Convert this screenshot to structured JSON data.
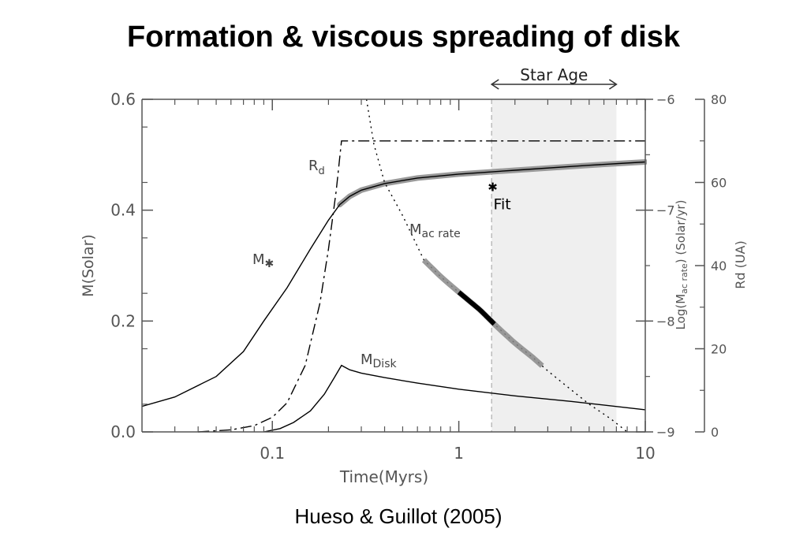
{
  "slide": {
    "title": "Formation & viscous spreading of disk",
    "citation": "Hueso & Guillot (2005)"
  },
  "chart_data": {
    "type": "line",
    "xscale": "log",
    "xlim": [
      0.02,
      10
    ],
    "xlabel": "Time(Myrs)",
    "x_ticks": [
      {
        "value": 0.1,
        "label": "0.1"
      },
      {
        "value": 1,
        "label": "1"
      },
      {
        "value": 10,
        "label": "10"
      }
    ],
    "axes": {
      "left": {
        "label": "M(Solar)",
        "lim": [
          0,
          0.6
        ],
        "ticks": [
          {
            "value": 0,
            "label": "0.0"
          },
          {
            "value": 0.2,
            "label": "0.2"
          },
          {
            "value": 0.4,
            "label": "0.4"
          },
          {
            "value": 0.6,
            "label": "0.6"
          }
        ]
      },
      "accretion": {
        "label_main": "Log(M",
        "label_sub": "ac rate",
        "label_end": ") (Solar/yr)",
        "lim": [
          -9,
          -6
        ],
        "ticks": [
          {
            "value": -6,
            "label": "−6"
          },
          {
            "value": -7,
            "label": "−7"
          },
          {
            "value": -8,
            "label": "−8"
          },
          {
            "value": -9,
            "label": "−9"
          }
        ]
      },
      "radius": {
        "label": "Rd (UA)",
        "lim": [
          0,
          80
        ],
        "ticks": [
          {
            "value": 0,
            "label": "0"
          },
          {
            "value": 20,
            "label": "20"
          },
          {
            "value": 40,
            "label": "40"
          },
          {
            "value": 60,
            "label": "60"
          },
          {
            "value": 80,
            "label": "80"
          }
        ]
      }
    },
    "star_age": {
      "label": "Star Age",
      "range": [
        1.5,
        7.0
      ]
    },
    "fit": {
      "label": "Fit",
      "symbol": "✱",
      "x": 1.52,
      "mass": 0.443
    },
    "series": [
      {
        "id": "mstar",
        "label_main": "M",
        "label_sub": "✱",
        "axis": "left",
        "style": "solid",
        "x": [
          0.02,
          0.03,
          0.05,
          0.07,
          0.09,
          0.12,
          0.16,
          0.2,
          0.23,
          0.26,
          0.3,
          0.4,
          0.6,
          1,
          2,
          5,
          10
        ],
        "y": [
          0.046,
          0.063,
          0.1,
          0.145,
          0.2,
          0.26,
          0.33,
          0.382,
          0.41,
          0.425,
          0.436,
          0.448,
          0.458,
          0.465,
          0.472,
          0.481,
          0.487
        ]
      },
      {
        "id": "mdisk",
        "label_main": "M",
        "label_sub": "Disk",
        "axis": "left",
        "style": "solid",
        "x": [
          0.09,
          0.11,
          0.13,
          0.16,
          0.19,
          0.215,
          0.235,
          0.26,
          0.3,
          0.4,
          0.6,
          1,
          2,
          4,
          10
        ],
        "y": [
          0.0,
          0.006,
          0.017,
          0.038,
          0.068,
          0.098,
          0.12,
          0.112,
          0.106,
          0.098,
          0.088,
          0.077,
          0.065,
          0.055,
          0.04
        ]
      },
      {
        "id": "rd",
        "label_main": "R",
        "label_sub": "d",
        "axis": "radius",
        "style": "dashdot",
        "x": [
          0.04,
          0.06,
          0.08,
          0.1,
          0.12,
          0.15,
          0.18,
          0.2,
          0.22,
          0.235,
          0.4,
          1,
          3,
          10
        ],
        "y": [
          0.0,
          0.5,
          1.5,
          3.5,
          7,
          16,
          31,
          44,
          58,
          70,
          70,
          70,
          70,
          70
        ]
      },
      {
        "id": "macc",
        "label_main": "M",
        "label_sub": "ac rate",
        "axis": "accretion",
        "style": "dotted",
        "x": [
          0.32,
          0.35,
          0.4,
          0.5,
          0.65,
          0.8,
          1,
          1.3,
          1.6,
          2,
          2.5,
          3,
          4,
          5,
          6.5,
          8
        ],
        "y": [
          -6.0,
          -6.4,
          -6.75,
          -7.05,
          -7.45,
          -7.6,
          -7.74,
          -7.9,
          -8.05,
          -8.2,
          -8.33,
          -8.45,
          -8.62,
          -8.75,
          -8.88,
          -9.0
        ]
      }
    ],
    "accretion_fit_bands": [
      {
        "id": "wide-band",
        "range": [
          0.65,
          2.8
        ],
        "color": "#888888"
      },
      {
        "id": "thick-band",
        "range": [
          1.0,
          1.55
        ],
        "color": "#000000"
      }
    ],
    "colors": {
      "star_age_shading": "#efefef",
      "axis": "#555555",
      "curve": "#000000",
      "mstar_halo": "#999999"
    }
  }
}
